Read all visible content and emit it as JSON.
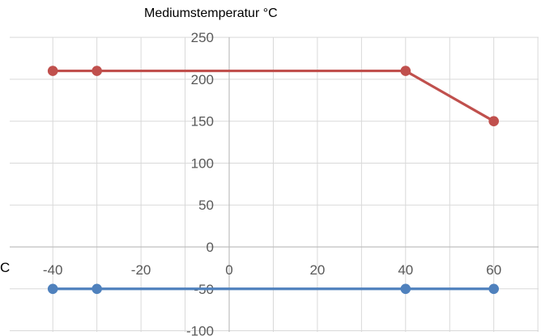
{
  "chart_data": {
    "type": "scatter",
    "title": "",
    "ylabel": "Mediumstemperatur °C",
    "xlabel_visible_fragment": "C",
    "xlim": [
      -45,
      70
    ],
    "ylim": [
      -100,
      250
    ],
    "xticks": [
      -40,
      -20,
      0,
      20,
      40,
      60
    ],
    "yticks": [
      -100,
      -50,
      0,
      50,
      100,
      150,
      200,
      250
    ],
    "xtick_labels": [
      "-40",
      "-20",
      "0",
      "20",
      "40",
      "60"
    ],
    "ytick_labels": [
      "-100",
      "-50",
      "0",
      "50",
      "100",
      "150",
      "200",
      "250"
    ],
    "grid": true,
    "series": [
      {
        "color": "#c0504d",
        "points": [
          {
            "x": -40,
            "y": 210
          },
          {
            "x": -30,
            "y": 210
          },
          {
            "x": 40,
            "y": 210
          },
          {
            "x": 60,
            "y": 150
          }
        ]
      },
      {
        "color": "#4f81bd",
        "points": [
          {
            "x": -40,
            "y": -50
          },
          {
            "x": -30,
            "y": -50
          },
          {
            "x": 40,
            "y": -50
          },
          {
            "x": 60,
            "y": -50
          }
        ]
      }
    ]
  }
}
